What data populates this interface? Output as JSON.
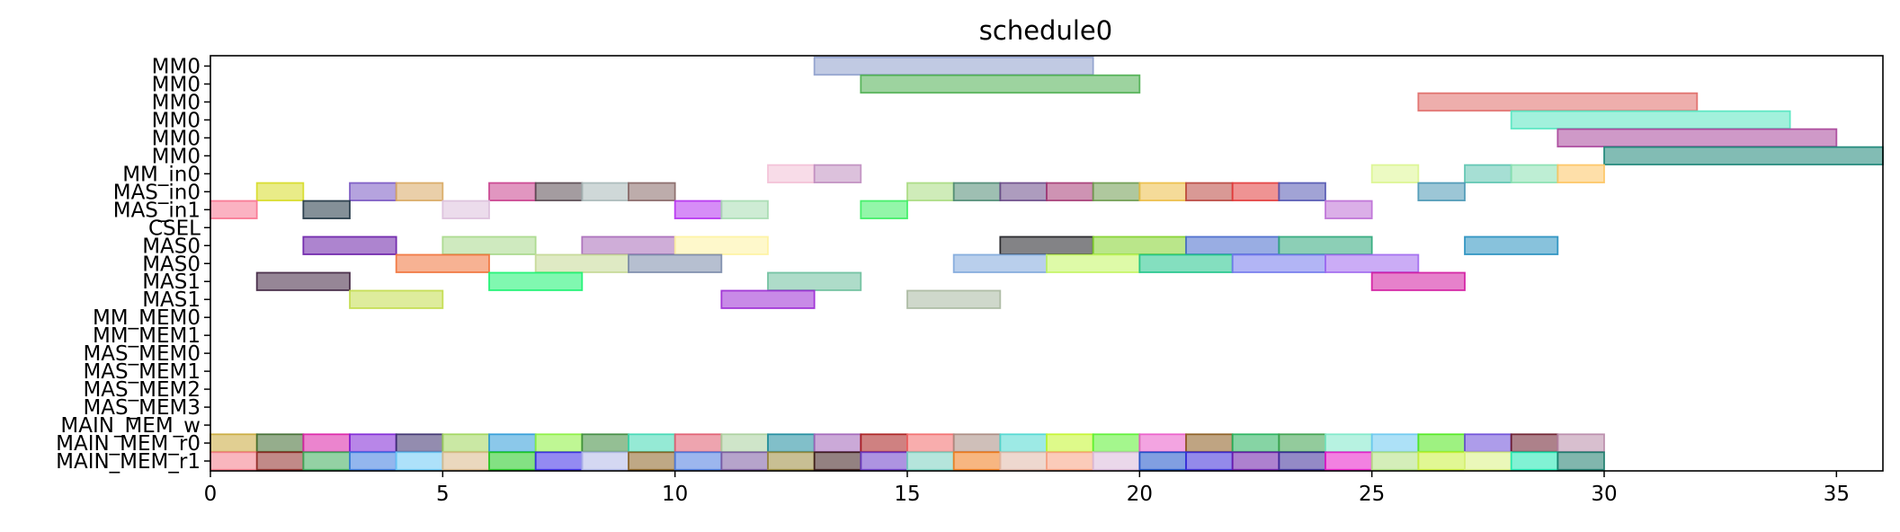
{
  "chart_data": {
    "type": "gantt",
    "title": "schedule0",
    "xlabel": "",
    "ylabel": "",
    "xlim": [
      0,
      36
    ],
    "x_ticks": [
      0,
      5,
      10,
      15,
      20,
      25,
      30,
      35
    ],
    "grid": false,
    "legend": "none",
    "rows": [
      "MM0",
      "MM0",
      "MM0",
      "MM0",
      "MM0",
      "MM0",
      "MM_in0",
      "MAS_in0",
      "MAS_in1",
      "CSEL",
      "MAS0",
      "MAS0",
      "MAS1",
      "MAS1",
      "MM_MEM0",
      "MM_MEM1",
      "MAS_MEM0",
      "MAS_MEM1",
      "MAS_MEM2",
      "MAS_MEM3",
      "MAIN_MEM_w",
      "MAIN_MEM_r0",
      "MAIN_MEM_r1"
    ],
    "tasks": [
      {
        "row": 0,
        "start": 13,
        "end": 19,
        "color": "#8e9fcc"
      },
      {
        "row": 1,
        "start": 14,
        "end": 20,
        "color": "#4caf50"
      },
      {
        "row": 2,
        "start": 26,
        "end": 32,
        "color": "#e06b68"
      },
      {
        "row": 3,
        "start": 28,
        "end": 34,
        "color": "#55e6c0"
      },
      {
        "row": 4,
        "start": 29,
        "end": 35,
        "color": "#a8459a"
      },
      {
        "row": 5,
        "start": 30,
        "end": 36,
        "color": "#1b8577"
      },
      {
        "row": 6,
        "start": 12,
        "end": 13,
        "color": "#f3c0d6"
      },
      {
        "row": 6,
        "start": 13,
        "end": 14,
        "color": "#c08ec0"
      },
      {
        "row": 6,
        "start": 25,
        "end": 26,
        "color": "#dcf590"
      },
      {
        "row": 6,
        "start": 27,
        "end": 28,
        "color": "#5cc4b0"
      },
      {
        "row": 6,
        "start": 28,
        "end": 29,
        "color": "#88e0b0"
      },
      {
        "row": 6,
        "start": 29,
        "end": 30,
        "color": "#fdc462"
      },
      {
        "row": 7,
        "start": 1,
        "end": 2,
        "color": "#d7dc27"
      },
      {
        "row": 7,
        "start": 3,
        "end": 4,
        "color": "#7957c2"
      },
      {
        "row": 7,
        "start": 4,
        "end": 5,
        "color": "#d8a862"
      },
      {
        "row": 7,
        "start": 6,
        "end": 7,
        "color": "#c93f8d"
      },
      {
        "row": 7,
        "start": 7,
        "end": 8,
        "color": "#5a4a52"
      },
      {
        "row": 7,
        "start": 8,
        "end": 9,
        "color": "#a8b8b8"
      },
      {
        "row": 7,
        "start": 9,
        "end": 10,
        "color": "#876766"
      },
      {
        "row": 7,
        "start": 15,
        "end": 16,
        "color": "#a8dc80"
      },
      {
        "row": 7,
        "start": 16,
        "end": 17,
        "color": "#4f8a73"
      },
      {
        "row": 7,
        "start": 17,
        "end": 18,
        "color": "#6a4a88"
      },
      {
        "row": 7,
        "start": 18,
        "end": 19,
        "color": "#a53a74"
      },
      {
        "row": 7,
        "start": 19,
        "end": 20,
        "color": "#6e9b4f"
      },
      {
        "row": 7,
        "start": 20,
        "end": 21,
        "color": "#ecbd45"
      },
      {
        "row": 7,
        "start": 21,
        "end": 22,
        "color": "#b9463e"
      },
      {
        "row": 7,
        "start": 22,
        "end": 23,
        "color": "#e23b3b"
      },
      {
        "row": 7,
        "start": 23,
        "end": 24,
        "color": "#5357b2"
      },
      {
        "row": 7,
        "start": 26,
        "end": 27,
        "color": "#4a97b5"
      },
      {
        "row": 8,
        "start": 0,
        "end": 1,
        "color": "#f8728f"
      },
      {
        "row": 8,
        "start": 2,
        "end": 3,
        "color": "#1f3444"
      },
      {
        "row": 8,
        "start": 5,
        "end": 6,
        "color": "#dcbfdc"
      },
      {
        "row": 8,
        "start": 10,
        "end": 11,
        "color": "#b52ff0"
      },
      {
        "row": 8,
        "start": 11,
        "end": 12,
        "color": "#a6dcb0"
      },
      {
        "row": 8,
        "start": 14,
        "end": 15,
        "color": "#3bee62"
      },
      {
        "row": 8,
        "start": 24,
        "end": 25,
        "color": "#bd6ed6"
      },
      {
        "row": 10,
        "start": 2,
        "end": 4,
        "color": "#6a1fa8"
      },
      {
        "row": 10,
        "start": 5,
        "end": 7,
        "color": "#a7d88a"
      },
      {
        "row": 10,
        "start": 8,
        "end": 10,
        "color": "#a76ab8"
      },
      {
        "row": 10,
        "start": 10,
        "end": 12,
        "color": "#fef2a0"
      },
      {
        "row": 10,
        "start": 17,
        "end": 19,
        "color": "#1e1e22"
      },
      {
        "row": 10,
        "start": 19,
        "end": 21,
        "color": "#82d22a"
      },
      {
        "row": 10,
        "start": 21,
        "end": 23,
        "color": "#4669cc"
      },
      {
        "row": 10,
        "start": 23,
        "end": 25,
        "color": "#2da77a"
      },
      {
        "row": 10,
        "start": 27,
        "end": 29,
        "color": "#268fbf"
      },
      {
        "row": 11,
        "start": 4,
        "end": 6,
        "color": "#f1723a"
      },
      {
        "row": 11,
        "start": 7,
        "end": 9,
        "color": "#c4d894"
      },
      {
        "row": 11,
        "start": 9,
        "end": 11,
        "color": "#7a8aaa"
      },
      {
        "row": 11,
        "start": 16,
        "end": 18,
        "color": "#7fa8dc"
      },
      {
        "row": 11,
        "start": 18,
        "end": 20,
        "color": "#c2f560"
      },
      {
        "row": 11,
        "start": 20,
        "end": 22,
        "color": "#1fc58a"
      },
      {
        "row": 11,
        "start": 22,
        "end": 24,
        "color": "#7278ec"
      },
      {
        "row": 11,
        "start": 24,
        "end": 26,
        "color": "#a068ee"
      },
      {
        "row": 12,
        "start": 1,
        "end": 3,
        "color": "#3f2340"
      },
      {
        "row": 12,
        "start": 6,
        "end": 8,
        "color": "#18f370"
      },
      {
        "row": 12,
        "start": 12,
        "end": 14,
        "color": "#6cbf9c"
      },
      {
        "row": 12,
        "start": 25,
        "end": 27,
        "color": "#d21aa0"
      },
      {
        "row": 13,
        "start": 3,
        "end": 5,
        "color": "#c2dc4a"
      },
      {
        "row": 13,
        "start": 11,
        "end": 13,
        "color": "#9b29d4"
      },
      {
        "row": 13,
        "start": 15,
        "end": 17,
        "color": "#a8b8a0"
      },
      {
        "row": 21,
        "start": 0,
        "end": 1,
        "color": "#c8a838"
      },
      {
        "row": 21,
        "start": 1,
        "end": 2,
        "color": "#3e6a2e"
      },
      {
        "row": 21,
        "start": 2,
        "end": 3,
        "color": "#db1fa5"
      },
      {
        "row": 21,
        "start": 3,
        "end": 4,
        "color": "#7d22d6"
      },
      {
        "row": 21,
        "start": 4,
        "end": 5,
        "color": "#3a2e6e"
      },
      {
        "row": 21,
        "start": 5,
        "end": 6,
        "color": "#9fd55a"
      },
      {
        "row": 21,
        "start": 6,
        "end": 7,
        "color": "#2c9ad8"
      },
      {
        "row": 21,
        "start": 7,
        "end": 8,
        "color": "#8af03c"
      },
      {
        "row": 21,
        "start": 8,
        "end": 9,
        "color": "#3c8a3c"
      },
      {
        "row": 21,
        "start": 9,
        "end": 10,
        "color": "#3ed8b3"
      },
      {
        "row": 21,
        "start": 10,
        "end": 11,
        "color": "#e05a6e"
      },
      {
        "row": 21,
        "start": 11,
        "end": 12,
        "color": "#a8cf9c"
      },
      {
        "row": 21,
        "start": 12,
        "end": 13,
        "color": "#1a8a9c"
      },
      {
        "row": 21,
        "start": 13,
        "end": 14,
        "color": "#a063b8"
      },
      {
        "row": 21,
        "start": 14,
        "end": 15,
        "color": "#a81a1a"
      },
      {
        "row": 21,
        "start": 15,
        "end": 16,
        "color": "#f26a6a"
      },
      {
        "row": 21,
        "start": 16,
        "end": 17,
        "color": "#a88a80"
      },
      {
        "row": 21,
        "start": 17,
        "end": 18,
        "color": "#4cd8d0"
      },
      {
        "row": 21,
        "start": 18,
        "end": 19,
        "color": "#c2f52a"
      },
      {
        "row": 21,
        "start": 19,
        "end": 20,
        "color": "#5af030"
      },
      {
        "row": 21,
        "start": 20,
        "end": 21,
        "color": "#ea5ac8"
      },
      {
        "row": 21,
        "start": 21,
        "end": 22,
        "color": "#8a5a1c"
      },
      {
        "row": 21,
        "start": 22,
        "end": 23,
        "color": "#22b05a"
      },
      {
        "row": 21,
        "start": 23,
        "end": 24,
        "color": "#3aa04a"
      },
      {
        "row": 21,
        "start": 24,
        "end": 25,
        "color": "#7ce8c8"
      },
      {
        "row": 21,
        "start": 25,
        "end": 26,
        "color": "#6ac8f0"
      },
      {
        "row": 21,
        "start": 26,
        "end": 27,
        "color": "#4ee81a"
      },
      {
        "row": 21,
        "start": 27,
        "end": 28,
        "color": "#6a4ad8"
      },
      {
        "row": 21,
        "start": 28,
        "end": 29,
        "color": "#6a1a2a"
      },
      {
        "row": 21,
        "start": 29,
        "end": 30,
        "color": "#b88aa8"
      },
      {
        "row": 22,
        "start": 0,
        "end": 1,
        "color": "#f47a88"
      },
      {
        "row": 22,
        "start": 1,
        "end": 2,
        "color": "#8e2a26"
      },
      {
        "row": 22,
        "start": 2,
        "end": 3,
        "color": "#3aac5a"
      },
      {
        "row": 22,
        "start": 3,
        "end": 4,
        "color": "#3a7ae0"
      },
      {
        "row": 22,
        "start": 4,
        "end": 5,
        "color": "#6ac8f5"
      },
      {
        "row": 22,
        "start": 5,
        "end": 6,
        "color": "#d8b888"
      },
      {
        "row": 22,
        "start": 6,
        "end": 7,
        "color": "#1ec81e"
      },
      {
        "row": 22,
        "start": 7,
        "end": 8,
        "color": "#3a2ae8"
      },
      {
        "row": 22,
        "start": 8,
        "end": 9,
        "color": "#b0b8e8"
      },
      {
        "row": 22,
        "start": 9,
        "end": 10,
        "color": "#8a6020"
      },
      {
        "row": 22,
        "start": 10,
        "end": 11,
        "color": "#4a7ae0"
      },
      {
        "row": 22,
        "start": 11,
        "end": 12,
        "color": "#7a5aa0"
      },
      {
        "row": 22,
        "start": 12,
        "end": 13,
        "color": "#9a8a3a"
      },
      {
        "row": 22,
        "start": 13,
        "end": 14,
        "color": "#3a1a1a"
      },
      {
        "row": 22,
        "start": 14,
        "end": 15,
        "color": "#6a3ac8"
      },
      {
        "row": 22,
        "start": 15,
        "end": 16,
        "color": "#78d0c0"
      },
      {
        "row": 22,
        "start": 16,
        "end": 17,
        "color": "#f07a1a"
      },
      {
        "row": 22,
        "start": 17,
        "end": 18,
        "color": "#e0b8a8"
      },
      {
        "row": 22,
        "start": 18,
        "end": 19,
        "color": "#f8a080"
      },
      {
        "row": 22,
        "start": 19,
        "end": 20,
        "color": "#d8b8d8"
      },
      {
        "row": 22,
        "start": 20,
        "end": 21,
        "color": "#1a50c8"
      },
      {
        "row": 22,
        "start": 21,
        "end": 22,
        "color": "#3a2ad8"
      },
      {
        "row": 22,
        "start": 22,
        "end": 23,
        "color": "#6a1aa8"
      },
      {
        "row": 22,
        "start": 23,
        "end": 24,
        "color": "#3a2a98"
      },
      {
        "row": 22,
        "start": 24,
        "end": 25,
        "color": "#e81ac8"
      },
      {
        "row": 22,
        "start": 25,
        "end": 26,
        "color": "#b0e080"
      },
      {
        "row": 22,
        "start": 26,
        "end": 27,
        "color": "#c8f03a"
      },
      {
        "row": 22,
        "start": 27,
        "end": 28,
        "color": "#d8f080"
      },
      {
        "row": 22,
        "start": 28,
        "end": 29,
        "color": "#1ae8b0"
      },
      {
        "row": 22,
        "start": 29,
        "end": 30,
        "color": "#1a7a6a"
      }
    ]
  }
}
